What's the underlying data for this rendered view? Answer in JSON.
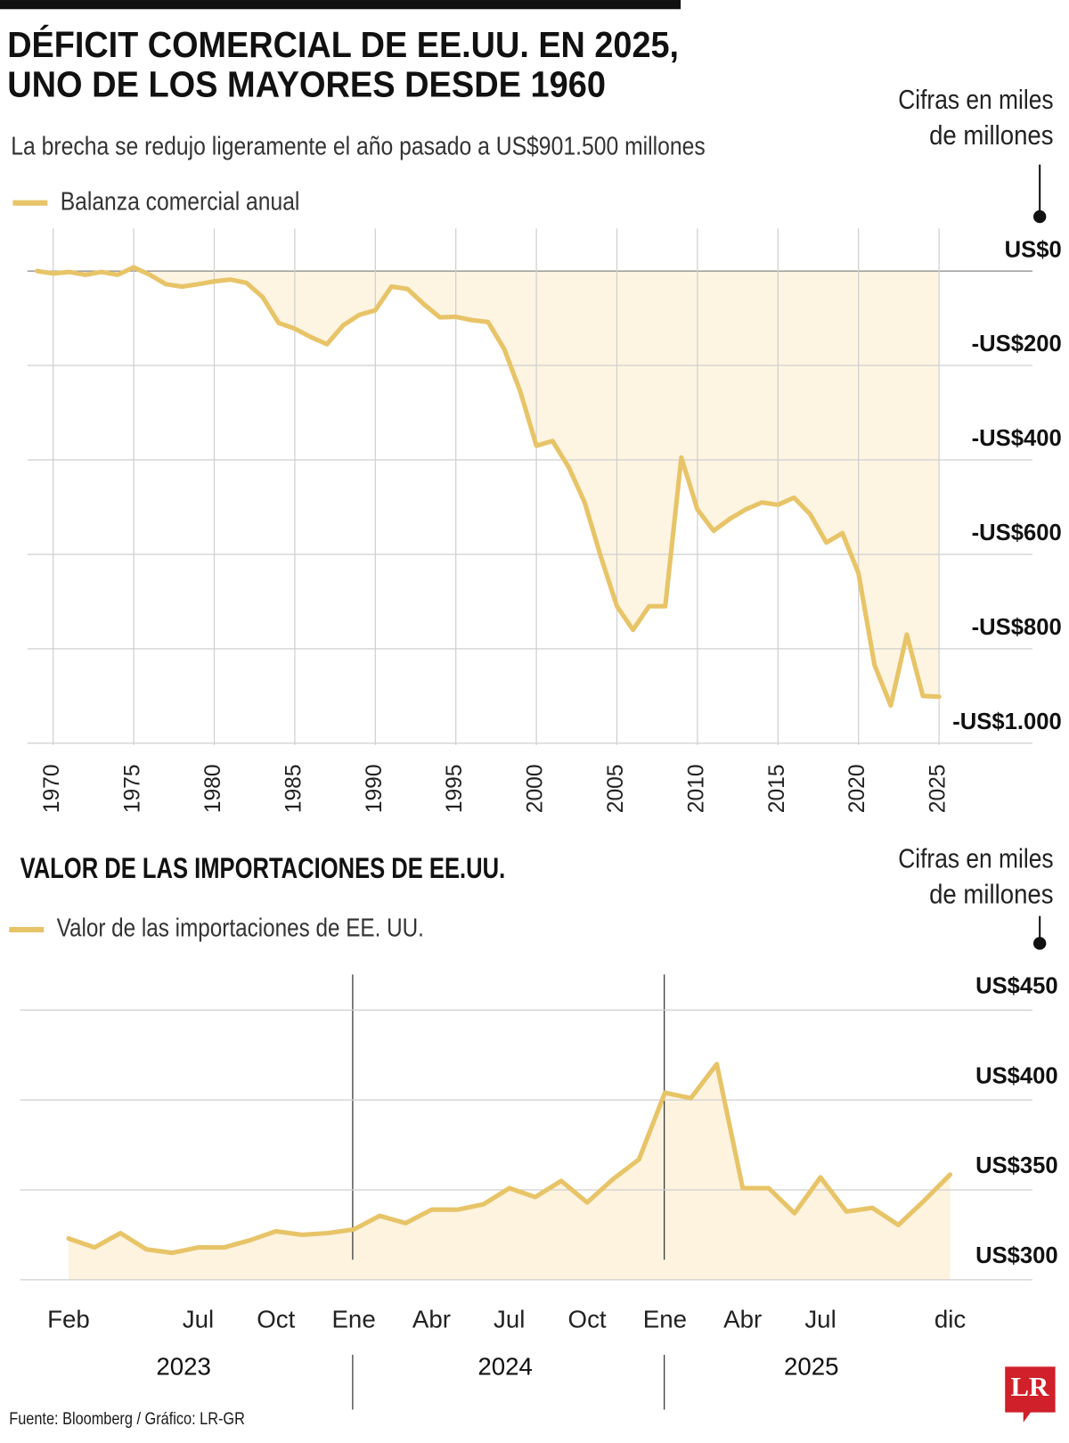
{
  "chart_data": [
    {
      "type": "line",
      "title": [
        "DÉFICIT COMERCIAL DE EE.UU. EN 2025,",
        "UNO DE LOS MAYORES DESDE 1960"
      ],
      "subtitle": "La brecha se redujo ligeramente el año pasado a US$901.500 millones",
      "unit_note": [
        "Cifras en miles",
        "de millones"
      ],
      "x": [
        1969,
        1970,
        1971,
        1972,
        1973,
        1974,
        1975,
        1976,
        1977,
        1978,
        1979,
        1980,
        1981,
        1982,
        1983,
        1984,
        1985,
        1986,
        1987,
        1988,
        1989,
        1990,
        1991,
        1992,
        1993,
        1994,
        1995,
        1996,
        1997,
        1998,
        1999,
        2000,
        2001,
        2002,
        2003,
        2004,
        2005,
        2006,
        2007,
        2008,
        2009,
        2010,
        2011,
        2012,
        2013,
        2014,
        2015,
        2016,
        2017,
        2018,
        2019,
        2020,
        2021,
        2022,
        2023,
        2024,
        2025
      ],
      "series": [
        {
          "name": "Balanza comercial anual",
          "color": "#e8c468",
          "values": [
            0,
            -5,
            -2,
            -8,
            -2,
            -8,
            8,
            -8,
            -28,
            -33,
            -28,
            -22,
            -18,
            -25,
            -55,
            -110,
            -122,
            -140,
            -155,
            -115,
            -93,
            -83,
            -33,
            -38,
            -70,
            -98,
            -97,
            -104,
            -108,
            -165,
            -255,
            -370,
            -360,
            -415,
            -490,
            -605,
            -710,
            -760,
            -710,
            -710,
            -395,
            -505,
            -550,
            -525,
            -505,
            -490,
            -495,
            -480,
            -515,
            -575,
            -555,
            -640,
            -835,
            -920,
            -770,
            -900,
            -901.5
          ]
        }
      ],
      "xlim": [
        1968.4,
        2030.8
      ],
      "xticks": [
        1970,
        1975,
        1980,
        1985,
        1990,
        1995,
        2000,
        2005,
        2010,
        2015,
        2020,
        2025
      ],
      "ylim": [
        -1000,
        90
      ],
      "yticks": [
        {
          "value": 0,
          "label": "US$0"
        },
        {
          "value": -200,
          "label": "-US$200"
        },
        {
          "value": -400,
          "label": "-US$400"
        },
        {
          "value": -600,
          "label": "-US$600"
        },
        {
          "value": -800,
          "label": "-US$800"
        },
        {
          "value": -1000,
          "label": "-US$1.000"
        }
      ],
      "grid": true,
      "fill_color": "#fdf4e2"
    },
    {
      "type": "line",
      "title": "VALOR DE LAS IMPORTACIONES DE EE.UU.",
      "unit_note": [
        "Cifras en miles",
        "de millones"
      ],
      "categories": [
        "Feb",
        null,
        null,
        null,
        null,
        "Jul",
        null,
        null,
        "Oct",
        null,
        null,
        "Ene",
        null,
        null,
        "Abr",
        null,
        null,
        "Jul",
        null,
        null,
        "Oct",
        null,
        null,
        "Ene",
        null,
        null,
        "Abr",
        null,
        null,
        "Jul",
        null,
        null,
        null,
        null,
        "dic"
      ],
      "year_labels": [
        "2023",
        "2024",
        "2025"
      ],
      "series": [
        {
          "name": "Valor de las importaciones de EE. UU.",
          "color": "#e8c468",
          "values": [
            323,
            318,
            326,
            317,
            315,
            318,
            318,
            322,
            327,
            325,
            326,
            328,
            335.6,
            331.5,
            339,
            339,
            342,
            351,
            346,
            355,
            343,
            356,
            367,
            404,
            401,
            420,
            351,
            351,
            337,
            357,
            338,
            340,
            330.5,
            344,
            358.5
          ]
        }
      ],
      "ylim": [
        300,
        470
      ],
      "yticks": [
        {
          "value": 300,
          "label": "US$300"
        },
        {
          "value": 350,
          "label": "US$350"
        },
        {
          "value": 400,
          "label": "US$400"
        },
        {
          "value": 450,
          "label": "US$450"
        }
      ],
      "grid": true,
      "fill_color": "#fbe9c4"
    }
  ],
  "footer": {
    "source": "Fuente: Bloomberg / Gráfico: LR-GR",
    "logo": "LR"
  }
}
